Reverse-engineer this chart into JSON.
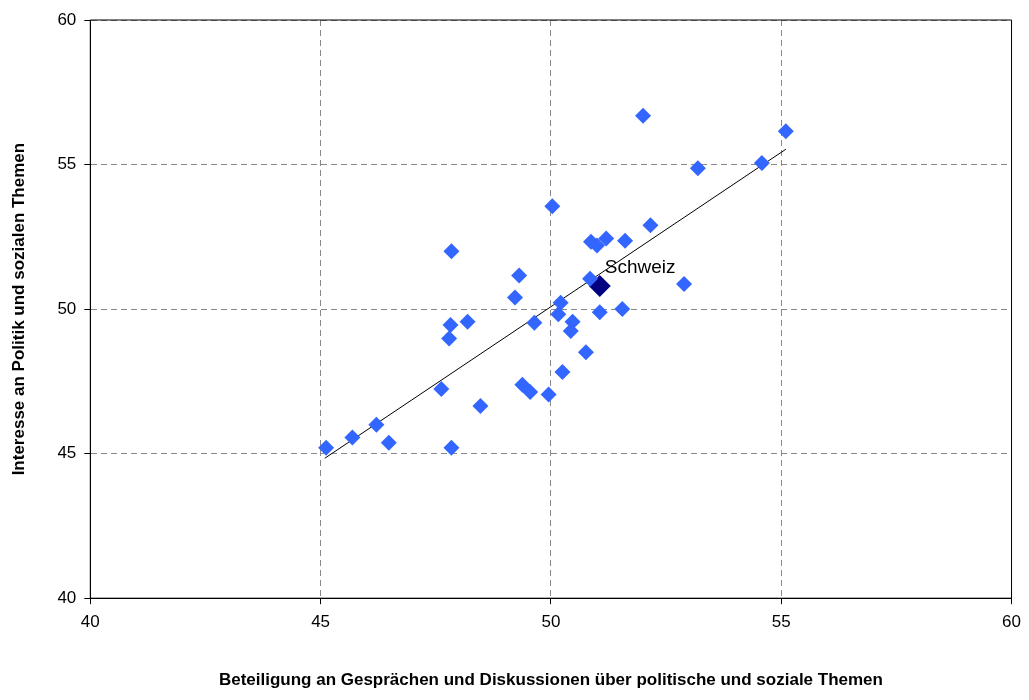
{
  "chart_data": {
    "type": "scatter",
    "xlabel": "Beteiligung an Gesprächen und Diskussionen über politische und soziale Themen",
    "ylabel": "Interesse an Politik und sozialen Themen",
    "xlim": [
      40,
      60
    ],
    "ylim": [
      40,
      60
    ],
    "xticks": [
      40,
      45,
      50,
      55,
      60
    ],
    "yticks": [
      40,
      45,
      50,
      55,
      60
    ],
    "grid": true,
    "legend": false,
    "marker": "diamond",
    "series": [
      {
        "color": "#3366ff",
        "x": [
          45.12,
          45.69,
          46.21,
          46.48,
          47.84,
          47.62,
          48.47,
          47.82,
          47.79,
          48.19,
          47.84,
          49.22,
          49.31,
          49.64,
          49.38,
          49.55,
          49.95,
          50.25,
          50.03,
          50.21,
          50.16,
          50.47,
          50.43,
          50.76,
          50.87,
          51.0,
          51.2,
          51.61,
          52.16,
          52.0,
          50.85,
          51.06,
          51.55,
          52.89,
          53.19,
          54.58,
          55.1
        ],
        "values": [
          45.2,
          45.56,
          46.0,
          45.38,
          45.2,
          47.24,
          46.65,
          49.45,
          48.98,
          49.56,
          52.0,
          50.4,
          51.16,
          49.53,
          47.38,
          47.13,
          47.05,
          47.82,
          53.56,
          50.22,
          49.82,
          49.56,
          49.24,
          48.51,
          52.33,
          52.2,
          52.44,
          52.36,
          52.9,
          56.69,
          51.05,
          49.89,
          50.0,
          50.87,
          54.87,
          55.05,
          56.15
        ]
      },
      {
        "color": "#000080",
        "x": [
          51.06
        ],
        "values": [
          50.8
        ]
      },
      {
        "type": "line",
        "color": "#000000",
        "marker": "none",
        "x": [
          45.09,
          55.1
        ],
        "values": [
          44.84,
          55.53
        ]
      }
    ],
    "annotations": [
      {
        "text": "Schweiz",
        "x": 51.06,
        "y": 50.8
      }
    ]
  }
}
